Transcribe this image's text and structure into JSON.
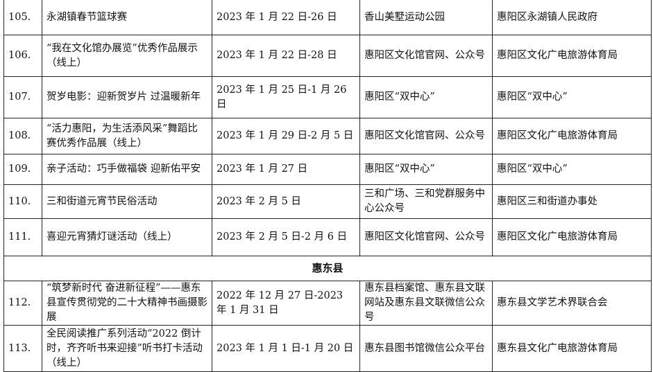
{
  "rows": [
    {
      "no": "105.",
      "name": "永湖镇春节篮球赛",
      "date": "2023 年 1 月 22 日-26 日",
      "venue": "香山美墅运动公园",
      "org": "惠阳区永湖镇人民政府"
    },
    {
      "no": "106.",
      "name": "“我在文化馆办展览”优秀作品展示（线上）",
      "date": "2023 年 1 月 22 日-28 日",
      "venue": "惠阳区文化馆官网、公众号",
      "org": "惠阳区文化广电旅游体育局"
    },
    {
      "no": "107.",
      "name": "贺岁电影：迎新贺岁片 过温暖新年",
      "date": "2023 年 1 月 25 日-1 月 26 日",
      "venue": "惠阳区“双中心”",
      "org": "惠阳区“双中心”"
    },
    {
      "no": "108.",
      "name": "“活力惠阳，为生活添风采”舞蹈比赛优秀作品展（线上）",
      "date": "2023 年 1 月 29 日-2 月 5 日",
      "venue": "惠阳区文化馆官网、公众号",
      "org": "惠阳区文化广电旅游体育局"
    },
    {
      "no": "109.",
      "name": "亲子活动：巧手做福袋 迎新佑平安",
      "date": "2023 年 1 月 27 日",
      "venue": "惠阳区“双中心”",
      "org": "惠阳区“双中心”"
    },
    {
      "no": "110.",
      "name": "三和街道元宵节民俗活动",
      "date": "2023 年 2 月 5 日",
      "venue": "三和广场、三和党群服务中心公众号",
      "org": "惠阳区三和街道办事处"
    },
    {
      "no": "111.",
      "name": "喜迎元宵猜灯谜活动（线上）",
      "date": "2023 年 2 月 5 日-2 月 6 日",
      "venue": "惠阳区文化馆官网、公众号",
      "org": "惠阳区文化广电旅游体育局"
    }
  ],
  "region": "惠东县",
  "rows2": [
    {
      "no": "112.",
      "name": "“筑梦新时代 奋进新征程”——惠东县宣传贯彻党的二十大精神书画摄影展",
      "date": "2022 年 12 月 27 日-2023 年 1 月 31 日",
      "venue": "惠东县档案馆、惠东县文联网站及惠东县文联微信公众号",
      "org": "惠东县文学艺术界联合会"
    },
    {
      "no": "113.",
      "name": "全民阅读推广系列活动“2022 倒计时，齐齐听书来迎接”听书打卡活动（线上）",
      "date": "2023 年 1 月 1 日-1 月 20 日",
      "venue": "惠东县图书馆微信公众平台",
      "org": "惠东县文化广电旅游体育局"
    }
  ]
}
